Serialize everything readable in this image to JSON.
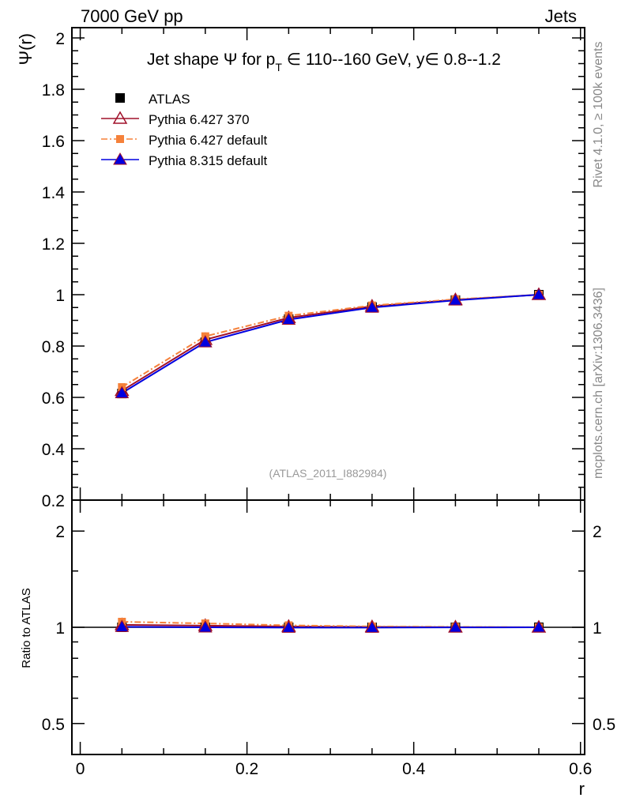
{
  "header": {
    "left": "7000 GeV pp",
    "right": "Jets"
  },
  "side_labels": {
    "rivet": "Rivet 4.1.0, ≥ 100k events",
    "mcplots": "mcplots.cern.ch [arXiv:1306.3436]"
  },
  "chart_data": {
    "type": "line",
    "title": "Jet shape Ψ for p_T ∈ 110--160 GeV, y∈ 0.8--1.2",
    "title_parts": {
      "a": "Jet shape Ψ for p",
      "sub": "T",
      "b": " ∈ 110--160 GeV, y∈ 0.8--1.2"
    },
    "watermark": "(ATLAS_2011_I882984)",
    "xlabel": "r",
    "ylabel": "Ψ(r)",
    "ratio_ylabel": "Ratio to ATLAS",
    "xlim": [
      -0.01,
      0.605
    ],
    "ylim": [
      0.2,
      2.04
    ],
    "ratio_ylim": [
      0.4,
      2.5
    ],
    "ratio_scale": "log",
    "x_ticks": [
      "0",
      "0.2",
      "0.4",
      "0.6"
    ],
    "x_tick_values": [
      0,
      0.2,
      0.4,
      0.6
    ],
    "y_ticks": [
      "0.2",
      "0.4",
      "0.6",
      "0.8",
      "1",
      "1.2",
      "1.4",
      "1.6",
      "1.8",
      "2"
    ],
    "y_tick_values": [
      0.2,
      0.4,
      0.6,
      0.8,
      1,
      1.2,
      1.4,
      1.6,
      1.8,
      2
    ],
    "ratio_ticks": [
      "0.5",
      "1",
      "2"
    ],
    "ratio_tick_values": [
      0.5,
      1,
      2
    ],
    "legend_position": "top-left",
    "x": [
      0.05,
      0.15,
      0.25,
      0.35,
      0.45,
      0.55
    ],
    "series": [
      {
        "name": "ATLAS",
        "color": "#000000",
        "marker": "square",
        "line": "none",
        "values": [
          0.615,
          0.815,
          0.905,
          0.952,
          0.979,
          1.0
        ]
      },
      {
        "name": "Pythia 6.427 370",
        "color": "#a0102a",
        "marker": "open-triangle",
        "line": "solid",
        "values": [
          0.626,
          0.825,
          0.91,
          0.955,
          0.98,
          1.0
        ]
      },
      {
        "name": "Pythia 6.427 default",
        "color": "#f5813a",
        "marker": "small-square",
        "line": "dashdot",
        "values": [
          0.64,
          0.838,
          0.918,
          0.958,
          0.982,
          1.0
        ]
      },
      {
        "name": "Pythia 8.315 default",
        "color": "#0000e0",
        "marker": "triangle",
        "line": "solid",
        "values": [
          0.617,
          0.815,
          0.903,
          0.95,
          0.978,
          1.0
        ]
      }
    ]
  }
}
